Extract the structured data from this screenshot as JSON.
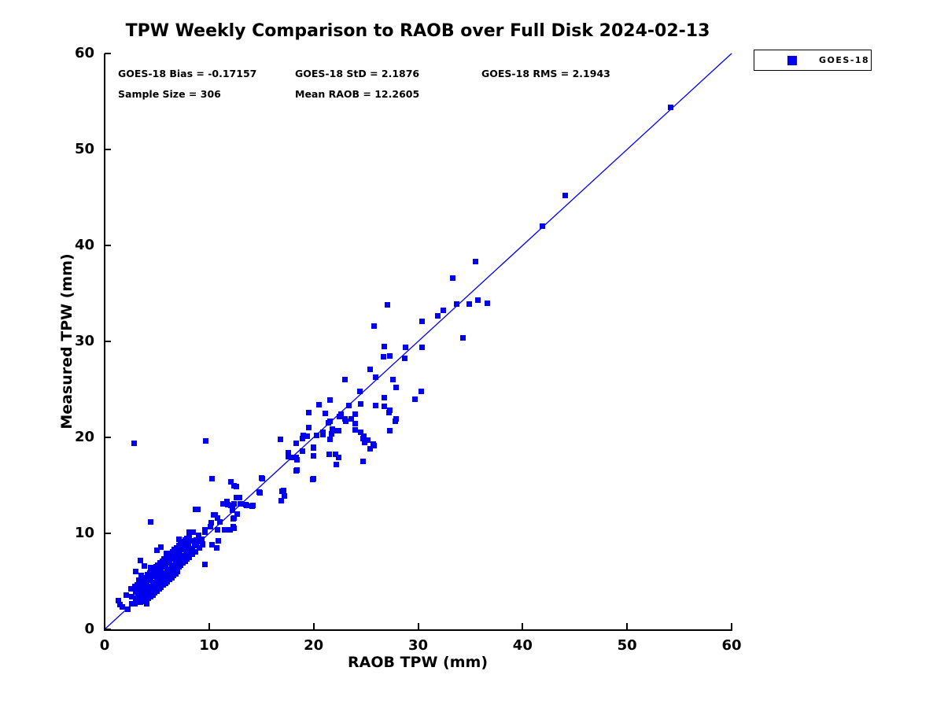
{
  "title": "TPW Weekly Comparison to RAOB over Full Disk 2024-02-13",
  "stats": {
    "bias": "GOES-18 Bias = -0.17157",
    "std": "GOES-18 StD = 2.1876",
    "rms": "GOES-18 RMS = 2.1943",
    "sample_size": "Sample Size = 306",
    "mean_raob": "Mean RAOB = 12.2605"
  },
  "colors": {
    "series_blue": "#0000EE",
    "axis_black": "#000000",
    "background": "#FFFFFF"
  },
  "chart_data": {
    "type": "scatter",
    "title": "TPW Weekly Comparison to RAOB over Full Disk 2024-02-13",
    "xlabel": "RAOB TPW (mm)",
    "ylabel": "Measured TPW (mm)",
    "xlim": [
      0,
      60
    ],
    "ylim": [
      0,
      60
    ],
    "x_ticks": [
      0,
      10,
      20,
      30,
      40,
      50,
      60
    ],
    "y_ticks": [
      0,
      10,
      20,
      30,
      40,
      50,
      60
    ],
    "grid": false,
    "legend": {
      "position": "outside-top-right",
      "entries": [
        "GOES-18"
      ]
    },
    "reference_line": {
      "from": [
        0,
        0
      ],
      "to": [
        60,
        60
      ],
      "style": "solid",
      "color": "#0000EE"
    },
    "series": [
      {
        "name": "GOES-18",
        "marker": "filled-square",
        "color": "#0000EE",
        "points": [
          [
            54.2,
            54.4
          ],
          [
            44.1,
            45.2
          ],
          [
            41.9,
            42.0
          ],
          [
            35.5,
            38.3
          ],
          [
            33.3,
            36.6
          ],
          [
            27.1,
            33.8
          ],
          [
            32.4,
            33.2
          ],
          [
            31.9,
            32.7
          ],
          [
            30.4,
            32.1
          ],
          [
            25.8,
            31.6
          ],
          [
            33.7,
            33.9
          ],
          [
            34.9,
            33.9
          ],
          [
            35.7,
            34.3
          ],
          [
            36.6,
            34.0
          ],
          [
            34.3,
            30.4
          ],
          [
            30.4,
            29.4
          ],
          [
            26.8,
            29.5
          ],
          [
            28.8,
            29.4
          ],
          [
            26.7,
            28.4
          ],
          [
            27.3,
            28.5
          ],
          [
            28.7,
            28.2
          ],
          [
            25.4,
            27.1
          ],
          [
            25.9,
            26.3
          ],
          [
            23.0,
            26.0
          ],
          [
            27.6,
            26.0
          ],
          [
            27.9,
            25.2
          ],
          [
            24.4,
            24.8
          ],
          [
            30.3,
            24.8
          ],
          [
            29.7,
            24.0
          ],
          [
            21.6,
            23.9
          ],
          [
            24.5,
            23.5
          ],
          [
            25.9,
            23.3
          ],
          [
            26.8,
            24.1
          ],
          [
            26.8,
            23.2
          ],
          [
            27.2,
            22.6
          ],
          [
            23.4,
            23.3
          ],
          [
            22.5,
            22.2
          ],
          [
            23.1,
            21.7
          ],
          [
            24.0,
            22.4
          ],
          [
            24.0,
            21.4
          ],
          [
            27.8,
            21.7
          ],
          [
            21.6,
            21.7
          ],
          [
            22.1,
            20.7
          ],
          [
            24.0,
            20.8
          ],
          [
            27.3,
            20.7
          ],
          [
            24.8,
            20.1
          ],
          [
            24.9,
            19.5
          ],
          [
            25.7,
            19.3
          ],
          [
            20.5,
            23.4
          ],
          [
            19.5,
            22.6
          ],
          [
            21.1,
            22.5
          ],
          [
            22.6,
            22.4
          ],
          [
            23.0,
            21.9
          ],
          [
            23.6,
            21.9
          ],
          [
            24.5,
            20.5
          ],
          [
            21.8,
            20.9
          ],
          [
            20.9,
            20.3
          ],
          [
            20.3,
            20.2
          ],
          [
            19.4,
            20.1
          ],
          [
            27.9,
            21.9
          ],
          [
            27.3,
            22.8
          ],
          [
            9.7,
            19.6
          ],
          [
            2.8,
            19.4
          ],
          [
            16.8,
            19.8
          ],
          [
            19.5,
            21.0
          ],
          [
            21.4,
            21.5
          ],
          [
            18.3,
            19.4
          ],
          [
            19.0,
            20.2
          ],
          [
            20.9,
            20.5
          ],
          [
            21.7,
            20.4
          ],
          [
            22.4,
            20.7
          ],
          [
            18.9,
            18.6
          ],
          [
            20.0,
            18.9
          ],
          [
            17.6,
            18.0
          ],
          [
            18.3,
            17.9
          ],
          [
            22.1,
            18.2
          ],
          [
            22.4,
            17.9
          ],
          [
            21.5,
            18.2
          ],
          [
            24.7,
            19.9
          ],
          [
            25.4,
            18.8
          ],
          [
            24.7,
            17.5
          ],
          [
            18.3,
            16.5
          ],
          [
            19.9,
            15.6
          ],
          [
            10.3,
            15.7
          ],
          [
            12.1,
            15.4
          ],
          [
            12.6,
            14.9
          ],
          [
            15.0,
            15.8
          ],
          [
            14.9,
            14.2
          ],
          [
            17.0,
            14.4
          ],
          [
            17.2,
            13.9
          ],
          [
            12.6,
            13.7
          ],
          [
            11.7,
            13.3
          ],
          [
            11.3,
            13.1
          ],
          [
            12.1,
            12.9
          ],
          [
            13.0,
            13.1
          ],
          [
            13.5,
            13.0
          ],
          [
            14.1,
            12.8
          ],
          [
            18.9,
            19.9
          ],
          [
            20.0,
            19.0
          ],
          [
            20.0,
            18.1
          ],
          [
            21.6,
            19.8
          ],
          [
            25.2,
            19.7
          ],
          [
            25.8,
            19.1
          ],
          [
            22.2,
            17.2
          ],
          [
            18.4,
            17.7
          ],
          [
            17.9,
            17.9
          ],
          [
            17.6,
            18.4
          ],
          [
            18.4,
            16.6
          ],
          [
            20.0,
            15.7
          ],
          [
            15.1,
            15.7
          ],
          [
            12.4,
            15.0
          ],
          [
            14.8,
            14.3
          ],
          [
            17.1,
            14.5
          ],
          [
            16.9,
            13.4
          ],
          [
            12.9,
            13.7
          ],
          [
            13.6,
            12.9
          ],
          [
            14.2,
            12.9
          ],
          [
            12.4,
            13.1
          ],
          [
            12.2,
            12.5
          ],
          [
            12.4,
            11.6
          ],
          [
            12.3,
            10.7
          ],
          [
            8.9,
            12.5
          ],
          [
            11.8,
            13.0
          ],
          [
            12.2,
            12.4
          ],
          [
            12.7,
            12.0
          ],
          [
            10.6,
            11.9
          ],
          [
            4.4,
            11.2
          ],
          [
            10.2,
            11.1
          ],
          [
            11.0,
            11.2
          ],
          [
            12.4,
            10.5
          ],
          [
            11.5,
            10.4
          ],
          [
            8.1,
            10.1
          ],
          [
            9.6,
            10.1
          ],
          [
            8.8,
            9.3
          ],
          [
            10.9,
            9.2
          ],
          [
            7.1,
            9.4
          ],
          [
            5.4,
            8.6
          ],
          [
            5.9,
            7.9
          ],
          [
            5.0,
            8.2
          ],
          [
            9.4,
            8.9
          ],
          [
            7.8,
            8.4
          ],
          [
            7.2,
            8.0
          ],
          [
            8.4,
            8.2
          ],
          [
            9.6,
            6.8
          ],
          [
            3.4,
            7.2
          ],
          [
            3.8,
            6.6
          ],
          [
            3.0,
            6.0
          ],
          [
            4.4,
            6.4
          ],
          [
            5.0,
            6.0
          ],
          [
            8.7,
            12.5
          ],
          [
            10.4,
            11.9
          ],
          [
            10.8,
            11.6
          ],
          [
            12.3,
            11.5
          ],
          [
            10.1,
            10.7
          ],
          [
            9.6,
            10.4
          ],
          [
            10.8,
            10.4
          ],
          [
            12.0,
            10.4
          ],
          [
            9.0,
            9.8
          ],
          [
            8.5,
            10.1
          ],
          [
            10.3,
            8.8
          ],
          [
            10.7,
            8.5
          ],
          [
            8.8,
            8.9
          ],
          [
            8.1,
            9.3
          ],
          [
            1.3,
            3.0
          ],
          [
            1.7,
            2.3
          ],
          [
            2.2,
            2.1
          ],
          [
            2.1,
            3.6
          ],
          [
            2.5,
            4.2
          ],
          [
            2.9,
            4.5
          ],
          [
            3.3,
            5.1
          ],
          [
            2.9,
            2.7
          ],
          [
            4.0,
            2.7
          ],
          [
            1.5,
            2.6
          ],
          [
            3.0,
            3.2
          ],
          [
            3.0,
            3.9
          ],
          [
            3.1,
            4.6
          ],
          [
            3.1,
            2.9
          ],
          [
            3.2,
            3.5
          ],
          [
            3.2,
            4.1
          ],
          [
            3.3,
            4.8
          ],
          [
            3.3,
            3.0
          ],
          [
            3.4,
            3.3
          ],
          [
            3.4,
            4.0
          ],
          [
            3.5,
            4.9
          ],
          [
            3.5,
            5.6
          ],
          [
            3.4,
            2.8
          ],
          [
            3.6,
            3.6
          ],
          [
            3.6,
            4.4
          ],
          [
            3.7,
            5.1
          ],
          [
            3.7,
            3.1
          ],
          [
            3.8,
            3.9
          ],
          [
            3.8,
            4.7
          ],
          [
            3.9,
            5.4
          ],
          [
            3.9,
            3.3
          ],
          [
            3.8,
            2.9
          ],
          [
            4.0,
            4.1
          ],
          [
            4.0,
            4.9
          ],
          [
            4.1,
            5.7
          ],
          [
            4.1,
            3.5
          ],
          [
            4.0,
            3.1
          ],
          [
            4.2,
            4.3
          ],
          [
            4.2,
            5.1
          ],
          [
            4.3,
            5.9
          ],
          [
            4.3,
            3.7
          ],
          [
            4.2,
            3.2
          ],
          [
            4.4,
            4.5
          ],
          [
            4.4,
            5.3
          ],
          [
            4.5,
            6.1
          ],
          [
            4.5,
            3.9
          ],
          [
            4.4,
            3.4
          ],
          [
            4.6,
            4.7
          ],
          [
            4.6,
            5.5
          ],
          [
            4.7,
            6.3
          ],
          [
            4.7,
            4.1
          ],
          [
            4.6,
            3.6
          ],
          [
            4.8,
            4.9
          ],
          [
            4.8,
            5.7
          ],
          [
            4.9,
            6.5
          ],
          [
            4.9,
            4.3
          ],
          [
            4.8,
            3.8
          ],
          [
            5.0,
            5.1
          ],
          [
            5.0,
            5.9
          ],
          [
            5.1,
            6.7
          ],
          [
            5.1,
            4.5
          ],
          [
            5.0,
            4.0
          ],
          [
            5.2,
            5.3
          ],
          [
            5.2,
            6.1
          ],
          [
            5.3,
            6.9
          ],
          [
            5.3,
            4.7
          ],
          [
            5.2,
            4.2
          ],
          [
            5.4,
            5.5
          ],
          [
            5.4,
            6.3
          ],
          [
            5.5,
            7.1
          ],
          [
            5.5,
            4.9
          ],
          [
            5.4,
            4.4
          ],
          [
            5.6,
            5.7
          ],
          [
            5.6,
            6.5
          ],
          [
            5.7,
            7.3
          ],
          [
            5.7,
            5.1
          ],
          [
            5.6,
            4.6
          ],
          [
            5.8,
            5.9
          ],
          [
            5.8,
            6.7
          ],
          [
            5.9,
            7.5
          ],
          [
            5.9,
            5.3
          ],
          [
            5.8,
            4.8
          ],
          [
            6.0,
            6.1
          ],
          [
            6.0,
            6.9
          ],
          [
            6.1,
            7.7
          ],
          [
            6.1,
            5.5
          ],
          [
            6.0,
            5.0
          ],
          [
            6.2,
            6.3
          ],
          [
            6.2,
            7.1
          ],
          [
            6.3,
            7.9
          ],
          [
            6.3,
            5.7
          ],
          [
            6.2,
            5.2
          ],
          [
            6.4,
            6.5
          ],
          [
            6.4,
            7.3
          ],
          [
            6.5,
            8.1
          ],
          [
            6.5,
            5.9
          ],
          [
            6.4,
            5.4
          ],
          [
            6.6,
            6.7
          ],
          [
            6.6,
            7.5
          ],
          [
            6.7,
            8.3
          ],
          [
            6.7,
            6.1
          ],
          [
            6.6,
            5.6
          ],
          [
            6.8,
            6.9
          ],
          [
            6.8,
            7.7
          ],
          [
            6.9,
            8.5
          ],
          [
            6.9,
            6.3
          ],
          [
            6.8,
            5.8
          ],
          [
            7.0,
            7.1
          ],
          [
            7.0,
            7.9
          ],
          [
            7.1,
            8.7
          ],
          [
            7.1,
            6.5
          ],
          [
            7.0,
            6.0
          ],
          [
            7.2,
            7.3
          ],
          [
            7.2,
            8.1
          ],
          [
            7.3,
            8.9
          ],
          [
            7.3,
            6.7
          ],
          [
            7.4,
            7.5
          ],
          [
            7.4,
            8.3
          ],
          [
            7.5,
            9.1
          ],
          [
            7.5,
            6.9
          ],
          [
            7.6,
            7.7
          ],
          [
            7.6,
            8.5
          ],
          [
            7.7,
            9.3
          ],
          [
            7.7,
            7.1
          ],
          [
            7.8,
            7.9
          ],
          [
            7.8,
            8.7
          ],
          [
            7.9,
            9.5
          ],
          [
            7.9,
            7.3
          ],
          [
            8.0,
            8.1
          ],
          [
            8.0,
            8.9
          ],
          [
            8.1,
            9.7
          ],
          [
            8.1,
            7.5
          ],
          [
            8.3,
            8.4
          ],
          [
            8.3,
            9.2
          ],
          [
            8.4,
            7.8
          ],
          [
            8.6,
            8.7
          ],
          [
            8.7,
            8.1
          ],
          [
            9.0,
            9.1
          ],
          [
            9.1,
            8.5
          ],
          [
            9.3,
            9.4
          ],
          [
            9.4,
            8.8
          ],
          [
            2.6,
            2.7
          ],
          [
            2.6,
            3.4
          ]
        ]
      }
    ]
  }
}
